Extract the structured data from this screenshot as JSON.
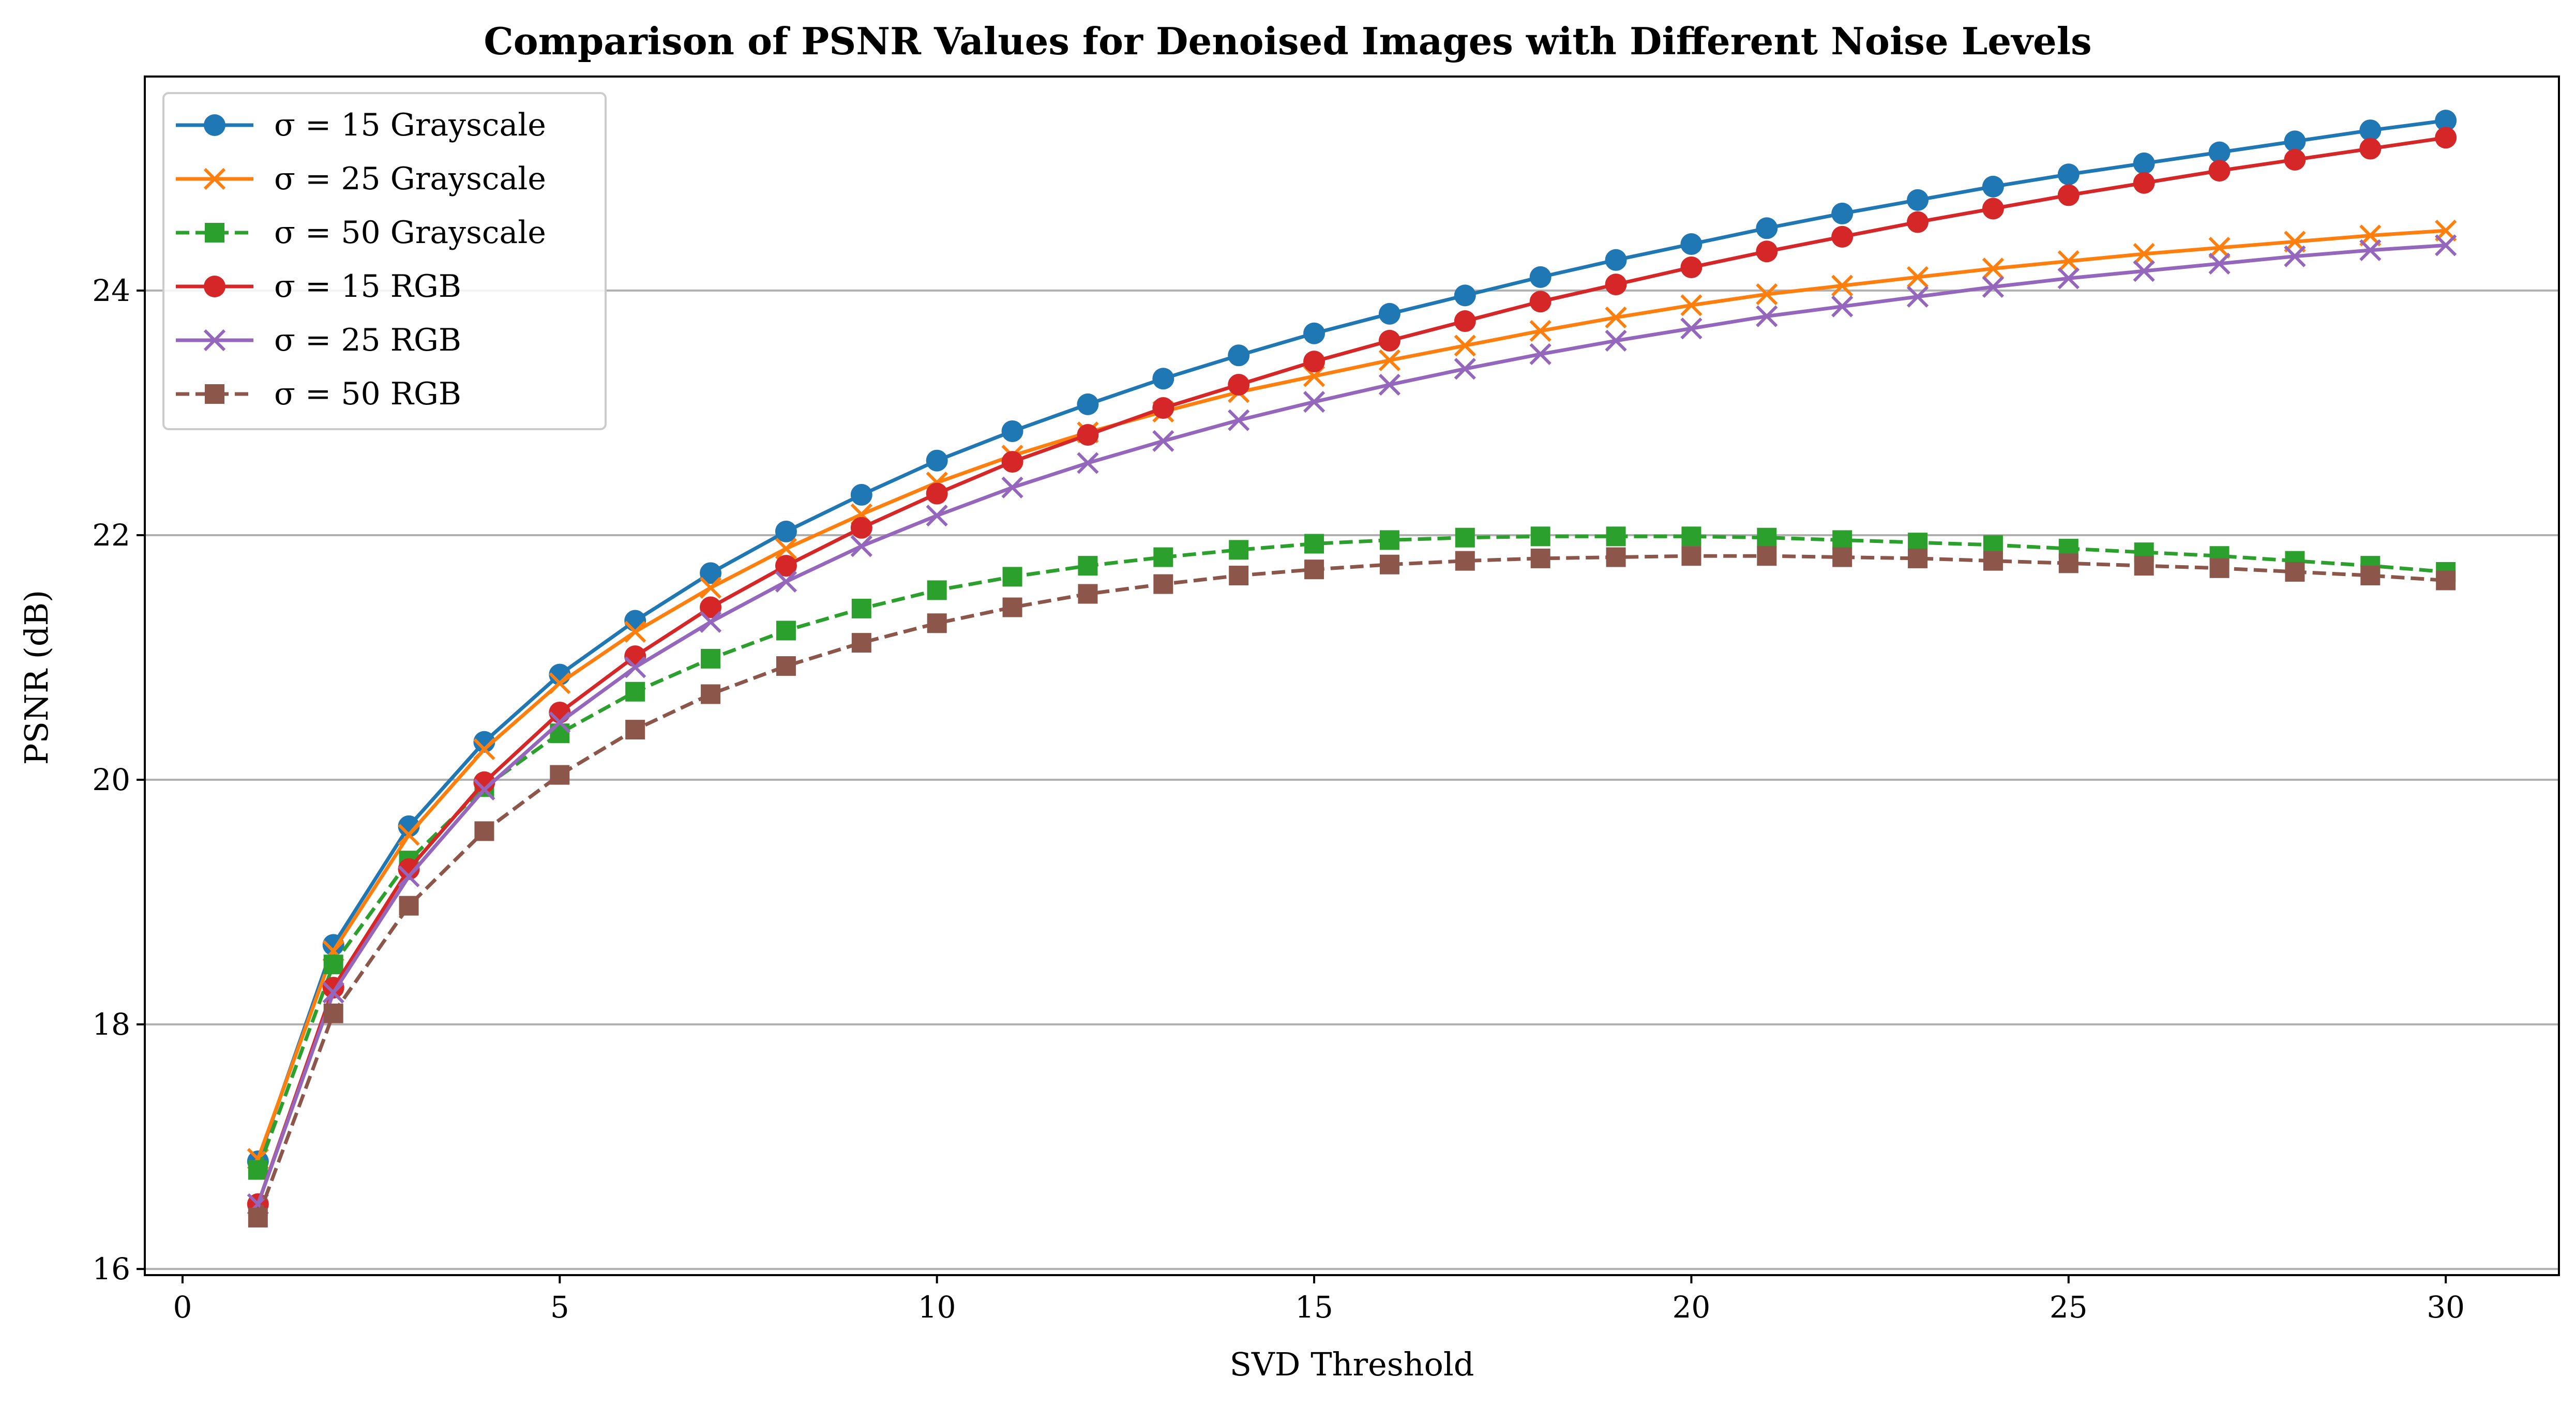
{
  "chart_data": {
    "type": "line",
    "title": "Comparison of PSNR Values for Denoised Images with Different Noise Levels",
    "xlabel": "SVD Threshold",
    "ylabel": "PSNR (dB)",
    "xlim": [
      -0.5,
      31.5
    ],
    "ylim": [
      15.95,
      25.75
    ],
    "xticks": [
      0,
      5,
      10,
      15,
      20,
      25,
      30
    ],
    "yticks": [
      16,
      18,
      20,
      22,
      24
    ],
    "grid": "y",
    "legend_position": "top-left",
    "x": [
      1,
      2,
      3,
      4,
      5,
      6,
      7,
      8,
      9,
      10,
      11,
      12,
      13,
      14,
      15,
      16,
      17,
      18,
      19,
      20,
      21,
      22,
      23,
      24,
      25,
      26,
      27,
      28,
      29,
      30
    ],
    "series": [
      {
        "name": "σ = 15 Grayscale",
        "color": "#1f77b4",
        "marker": "circle",
        "dash": "solid",
        "values": [
          16.88,
          18.65,
          19.62,
          20.31,
          20.86,
          21.3,
          21.69,
          22.03,
          22.33,
          22.61,
          22.85,
          23.07,
          23.28,
          23.47,
          23.65,
          23.81,
          23.96,
          24.11,
          24.25,
          24.38,
          24.51,
          24.63,
          24.74,
          24.85,
          24.95,
          25.04,
          25.13,
          25.22,
          25.31,
          25.39
        ]
      },
      {
        "name": "σ = 25 Grayscale",
        "color": "#ff7f0e",
        "marker": "x",
        "dash": "solid",
        "values": [
          16.9,
          18.6,
          19.55,
          20.25,
          20.79,
          21.21,
          21.57,
          21.89,
          22.17,
          22.43,
          22.65,
          22.84,
          23.01,
          23.17,
          23.3,
          23.43,
          23.55,
          23.67,
          23.78,
          23.88,
          23.97,
          24.04,
          24.11,
          24.18,
          24.24,
          24.3,
          24.35,
          24.4,
          24.45,
          24.49
        ]
      },
      {
        "name": "σ = 50 Grayscale",
        "color": "#2ca02c",
        "marker": "square",
        "dash": "dashed",
        "values": [
          16.81,
          18.49,
          19.34,
          19.94,
          20.38,
          20.72,
          20.99,
          21.22,
          21.4,
          21.55,
          21.66,
          21.75,
          21.82,
          21.88,
          21.93,
          21.96,
          21.98,
          21.99,
          21.99,
          21.99,
          21.98,
          21.96,
          21.94,
          21.92,
          21.89,
          21.86,
          21.83,
          21.79,
          21.75,
          21.7
        ]
      },
      {
        "name": "σ = 15 RGB",
        "color": "#d62728",
        "marker": "circle",
        "dash": "solid",
        "values": [
          16.53,
          18.3,
          19.27,
          19.98,
          20.55,
          21.01,
          21.41,
          21.75,
          22.06,
          22.34,
          22.6,
          22.82,
          23.04,
          23.23,
          23.42,
          23.59,
          23.75,
          23.91,
          24.05,
          24.19,
          24.32,
          24.44,
          24.56,
          24.67,
          24.78,
          24.88,
          24.98,
          25.07,
          25.16,
          25.25
        ]
      },
      {
        "name": "σ = 25 RGB",
        "color": "#9467bd",
        "marker": "x",
        "dash": "solid",
        "values": [
          16.53,
          18.26,
          19.21,
          19.92,
          20.47,
          20.92,
          21.29,
          21.62,
          21.91,
          22.16,
          22.39,
          22.59,
          22.77,
          22.94,
          23.09,
          23.23,
          23.36,
          23.48,
          23.59,
          23.69,
          23.79,
          23.87,
          23.95,
          24.03,
          24.1,
          24.16,
          24.22,
          24.28,
          24.33,
          24.37
        ]
      },
      {
        "name": "σ = 50 RGB",
        "color": "#8c564b",
        "marker": "square",
        "dash": "dashed",
        "values": [
          16.42,
          18.09,
          18.97,
          19.58,
          20.04,
          20.41,
          20.7,
          20.93,
          21.12,
          21.28,
          21.41,
          21.52,
          21.6,
          21.67,
          21.72,
          21.76,
          21.79,
          21.81,
          21.82,
          21.83,
          21.83,
          21.82,
          21.81,
          21.79,
          21.77,
          21.75,
          21.73,
          21.7,
          21.67,
          21.63
        ]
      }
    ]
  }
}
